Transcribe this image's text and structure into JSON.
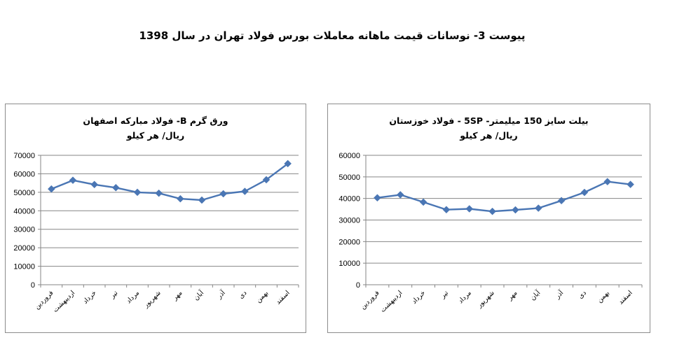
{
  "page": {
    "title": "پیوست 3- نوسانات قیمت ماهانه معاملات بورس فولاد تهران در سال 1398"
  },
  "chart_data": [
    {
      "type": "line",
      "title": "ورق گرم B- فولاد مبارکه اصفهان",
      "subtitle": "ریال/ هر کیلو",
      "categories": [
        "فروردین",
        "اردیبهشت",
        "خرداد",
        "تیر",
        "مرداد",
        "شهریور",
        "مهر",
        "آبان",
        "آذر",
        "دی",
        "بهمن",
        "اسفند"
      ],
      "series": [
        {
          "values": [
            51800,
            56500,
            54200,
            52500,
            50000,
            49500,
            46500,
            45800,
            49200,
            50500,
            56800,
            65500
          ]
        }
      ],
      "ylim": [
        0,
        70000
      ],
      "yticks": [
        0,
        10000,
        20000,
        30000,
        40000,
        50000,
        60000,
        70000
      ],
      "grid": true,
      "color": "#4a76b4",
      "marker": "diamond"
    },
    {
      "type": "line",
      "title": "بیلت سایز 150 میلیمتر- 5SP - فولاد خوزستان",
      "subtitle": "ریال/ هر کیلو",
      "categories": [
        "فروردین",
        "اردیبهشت",
        "خرداد",
        "تیر",
        "مرداد",
        "شهریور",
        "مهر",
        "آبان",
        "آذر",
        "دی",
        "بهمن",
        "اسفند"
      ],
      "series": [
        {
          "values": [
            40300,
            41700,
            38300,
            34800,
            35200,
            34000,
            34700,
            35500,
            39000,
            42800,
            47800,
            46500
          ]
        }
      ],
      "ylim": [
        0,
        60000
      ],
      "yticks": [
        0,
        10000,
        20000,
        30000,
        40000,
        50000,
        60000
      ],
      "grid": true,
      "color": "#4a76b4",
      "marker": "diamond"
    }
  ]
}
